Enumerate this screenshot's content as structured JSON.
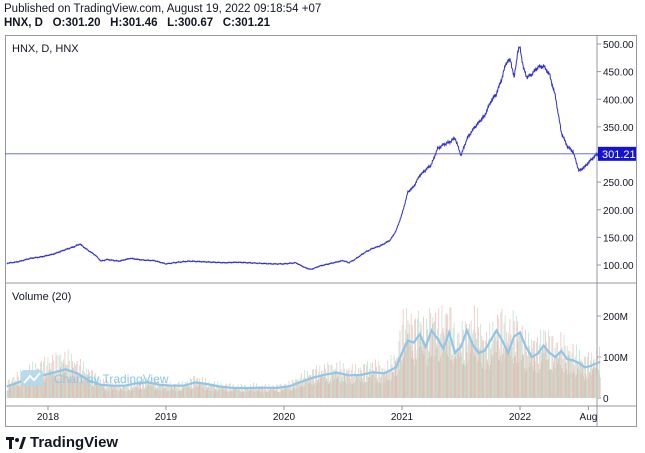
{
  "header": {
    "published": "Published on TradingView.com, August 19, 2022 09:18:54 +07",
    "symbol_line": "HNX, D",
    "open_label": "O:",
    "open": "301.20",
    "high_label": "H:",
    "high": "301.46",
    "low_label": "L:",
    "low": "300.67",
    "close_label": "C:",
    "close": "301.21"
  },
  "footer": {
    "brand": "TradingView"
  },
  "chart_data": [
    {
      "type": "line",
      "title": "HNX, D, HNX",
      "y_ticks": [
        "100.00",
        "150.00",
        "200.00",
        "250.00",
        "300.00",
        "350.00",
        "400.00",
        "450.00",
        "500.00"
      ],
      "ylim": [
        80,
        510
      ],
      "x_ticks": [
        "2018",
        "2019",
        "2020",
        "2021",
        "2022",
        "Aug"
      ],
      "last_value": 301.21,
      "last_value_label": "301.21",
      "colors": {
        "line": "#3030c8",
        "price_line": "#5b5bd6",
        "label_bg": "#1414d0"
      },
      "points": [
        [
          2017.65,
          103
        ],
        [
          2017.75,
          106
        ],
        [
          2017.85,
          112
        ],
        [
          2017.95,
          115
        ],
        [
          2018.05,
          120
        ],
        [
          2018.15,
          128
        ],
        [
          2018.22,
          133
        ],
        [
          2018.27,
          138
        ],
        [
          2018.33,
          128
        ],
        [
          2018.4,
          118
        ],
        [
          2018.45,
          107
        ],
        [
          2018.5,
          110
        ],
        [
          2018.6,
          107
        ],
        [
          2018.7,
          112
        ],
        [
          2018.8,
          109
        ],
        [
          2018.9,
          108
        ],
        [
          2019.0,
          102
        ],
        [
          2019.1,
          105
        ],
        [
          2019.2,
          107
        ],
        [
          2019.3,
          106
        ],
        [
          2019.4,
          105
        ],
        [
          2019.5,
          104
        ],
        [
          2019.6,
          105
        ],
        [
          2019.7,
          104
        ],
        [
          2019.8,
          103
        ],
        [
          2019.9,
          102
        ],
        [
          2020.0,
          102
        ],
        [
          2020.1,
          104
        ],
        [
          2020.18,
          95
        ],
        [
          2020.23,
          92
        ],
        [
          2020.3,
          98
        ],
        [
          2020.4,
          103
        ],
        [
          2020.5,
          108
        ],
        [
          2020.55,
          104
        ],
        [
          2020.6,
          110
        ],
        [
          2020.68,
          122
        ],
        [
          2020.75,
          130
        ],
        [
          2020.82,
          135
        ],
        [
          2020.9,
          145
        ],
        [
          2020.95,
          162
        ],
        [
          2021.0,
          192
        ],
        [
          2021.05,
          232
        ],
        [
          2021.1,
          242
        ],
        [
          2021.15,
          262
        ],
        [
          2021.2,
          272
        ],
        [
          2021.25,
          282
        ],
        [
          2021.3,
          310
        ],
        [
          2021.35,
          318
        ],
        [
          2021.4,
          322
        ],
        [
          2021.45,
          330
        ],
        [
          2021.5,
          298
        ],
        [
          2021.55,
          328
        ],
        [
          2021.6,
          345
        ],
        [
          2021.65,
          358
        ],
        [
          2021.7,
          370
        ],
        [
          2021.75,
          395
        ],
        [
          2021.8,
          410
        ],
        [
          2021.85,
          440
        ],
        [
          2021.88,
          465
        ],
        [
          2021.92,
          472
        ],
        [
          2021.95,
          438
        ],
        [
          2021.98,
          485
        ],
        [
          2022.0,
          495
        ],
        [
          2022.03,
          455
        ],
        [
          2022.06,
          440
        ],
        [
          2022.1,
          445
        ],
        [
          2022.15,
          458
        ],
        [
          2022.2,
          460
        ],
        [
          2022.25,
          445
        ],
        [
          2022.3,
          405
        ],
        [
          2022.35,
          340
        ],
        [
          2022.4,
          315
        ],
        [
          2022.45,
          305
        ],
        [
          2022.5,
          270
        ],
        [
          2022.55,
          278
        ],
        [
          2022.6,
          290
        ],
        [
          2022.65,
          300
        ],
        [
          2022.68,
          301
        ]
      ]
    },
    {
      "type": "bar",
      "title": "Volume (20)",
      "y_ticks": [
        "0",
        "100M",
        "200M"
      ],
      "ylim": [
        0,
        270
      ],
      "unit": "M",
      "colors": {
        "up": "#b9dfc8",
        "down": "#f4b6b6",
        "ma": "#8dc6e8"
      },
      "overlay_text": "Chart by TradingView",
      "volume": [
        [
          2017.65,
          32
        ],
        [
          2017.75,
          48
        ],
        [
          2017.85,
          60
        ],
        [
          2017.95,
          70
        ],
        [
          2018.05,
          80
        ],
        [
          2018.15,
          85
        ],
        [
          2018.25,
          70
        ],
        [
          2018.35,
          55
        ],
        [
          2018.45,
          35
        ],
        [
          2018.55,
          30
        ],
        [
          2018.65,
          28
        ],
        [
          2018.75,
          30
        ],
        [
          2018.85,
          40
        ],
        [
          2018.95,
          32
        ],
        [
          2019.05,
          28
        ],
        [
          2019.15,
          30
        ],
        [
          2019.25,
          42
        ],
        [
          2019.35,
          32
        ],
        [
          2019.45,
          28
        ],
        [
          2019.55,
          26
        ],
        [
          2019.65,
          24
        ],
        [
          2019.75,
          26
        ],
        [
          2019.85,
          24
        ],
        [
          2019.95,
          25
        ],
        [
          2020.05,
          30
        ],
        [
          2020.15,
          45
        ],
        [
          2020.25,
          55
        ],
        [
          2020.35,
          62
        ],
        [
          2020.45,
          65
        ],
        [
          2020.55,
          58
        ],
        [
          2020.65,
          60
        ],
        [
          2020.75,
          70
        ],
        [
          2020.85,
          58
        ],
        [
          2020.95,
          85
        ],
        [
          2021.0,
          150
        ],
        [
          2021.05,
          170
        ],
        [
          2021.1,
          140
        ],
        [
          2021.15,
          170
        ],
        [
          2021.2,
          130
        ],
        [
          2021.25,
          180
        ],
        [
          2021.3,
          150
        ],
        [
          2021.35,
          165
        ],
        [
          2021.4,
          175
        ],
        [
          2021.45,
          120
        ],
        [
          2021.5,
          135
        ],
        [
          2021.55,
          140
        ],
        [
          2021.6,
          162
        ],
        [
          2021.65,
          150
        ],
        [
          2021.7,
          115
        ],
        [
          2021.75,
          130
        ],
        [
          2021.8,
          155
        ],
        [
          2021.85,
          160
        ],
        [
          2021.9,
          140
        ],
        [
          2021.95,
          155
        ],
        [
          2022.0,
          145
        ],
        [
          2022.05,
          110
        ],
        [
          2022.1,
          120
        ],
        [
          2022.15,
          105
        ],
        [
          2022.2,
          135
        ],
        [
          2022.25,
          118
        ],
        [
          2022.3,
          108
        ],
        [
          2022.35,
          115
        ],
        [
          2022.4,
          100
        ],
        [
          2022.45,
          95
        ],
        [
          2022.5,
          88
        ],
        [
          2022.55,
          78
        ],
        [
          2022.6,
          82
        ],
        [
          2022.65,
          88
        ],
        [
          2022.68,
          90
        ]
      ],
      "ma": [
        [
          2017.65,
          28
        ],
        [
          2017.75,
          38
        ],
        [
          2017.85,
          50
        ],
        [
          2017.95,
          55
        ],
        [
          2018.05,
          62
        ],
        [
          2018.15,
          70
        ],
        [
          2018.25,
          60
        ],
        [
          2018.35,
          42
        ],
        [
          2018.45,
          32
        ],
        [
          2018.55,
          30
        ],
        [
          2018.65,
          30
        ],
        [
          2018.75,
          36
        ],
        [
          2018.85,
          38
        ],
        [
          2018.95,
          32
        ],
        [
          2019.05,
          30
        ],
        [
          2019.15,
          30
        ],
        [
          2019.25,
          38
        ],
        [
          2019.35,
          34
        ],
        [
          2019.45,
          28
        ],
        [
          2019.55,
          25
        ],
        [
          2019.65,
          24
        ],
        [
          2019.75,
          25
        ],
        [
          2019.85,
          25
        ],
        [
          2019.95,
          25
        ],
        [
          2020.05,
          29
        ],
        [
          2020.15,
          40
        ],
        [
          2020.25,
          50
        ],
        [
          2020.35,
          57
        ],
        [
          2020.45,
          62
        ],
        [
          2020.55,
          55
        ],
        [
          2020.65,
          56
        ],
        [
          2020.75,
          63
        ],
        [
          2020.85,
          60
        ],
        [
          2020.95,
          75
        ],
        [
          2021.0,
          110
        ],
        [
          2021.05,
          140
        ],
        [
          2021.1,
          135
        ],
        [
          2021.15,
          155
        ],
        [
          2021.2,
          125
        ],
        [
          2021.25,
          165
        ],
        [
          2021.3,
          145
        ],
        [
          2021.35,
          120
        ],
        [
          2021.4,
          160
        ],
        [
          2021.45,
          110
        ],
        [
          2021.5,
          125
        ],
        [
          2021.55,
          165
        ],
        [
          2021.6,
          130
        ],
        [
          2021.65,
          110
        ],
        [
          2021.7,
          115
        ],
        [
          2021.75,
          140
        ],
        [
          2021.8,
          165
        ],
        [
          2021.85,
          140
        ],
        [
          2021.9,
          110
        ],
        [
          2021.95,
          150
        ],
        [
          2022.0,
          160
        ],
        [
          2022.05,
          125
        ],
        [
          2022.1,
          100
        ],
        [
          2022.15,
          108
        ],
        [
          2022.2,
          128
        ],
        [
          2022.25,
          110
        ],
        [
          2022.3,
          100
        ],
        [
          2022.35,
          115
        ],
        [
          2022.4,
          95
        ],
        [
          2022.45,
          92
        ],
        [
          2022.5,
          85
        ],
        [
          2022.55,
          75
        ],
        [
          2022.6,
          78
        ],
        [
          2022.65,
          85
        ],
        [
          2022.68,
          88
        ]
      ]
    }
  ]
}
